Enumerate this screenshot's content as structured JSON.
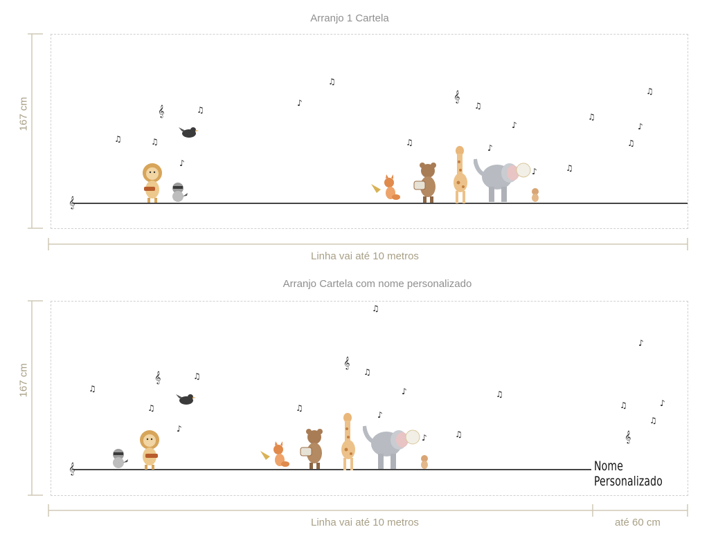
{
  "top": {
    "title": "Arranjo 1 Cartela",
    "height_label": "167 cm",
    "line_label": "Linha vai até 10 metros"
  },
  "bottom": {
    "title": "Arranjo Cartela com nome personalizado",
    "height_label": "167 cm",
    "line_label": "Linha vai até 10 metros",
    "name_label": "Nome Personalizado",
    "extra_label": "até 60 cm"
  },
  "icons": {
    "note": "music-note-icon",
    "clef": "treble-clef-icon",
    "animals": [
      "lion",
      "raccoon",
      "crow",
      "fox",
      "bear",
      "giraffe",
      "elephant"
    ]
  },
  "colors": {
    "dimension": "#a89f86",
    "title": "#8f8f8f",
    "dash": "#cfcfcf",
    "staff": "#444444"
  }
}
